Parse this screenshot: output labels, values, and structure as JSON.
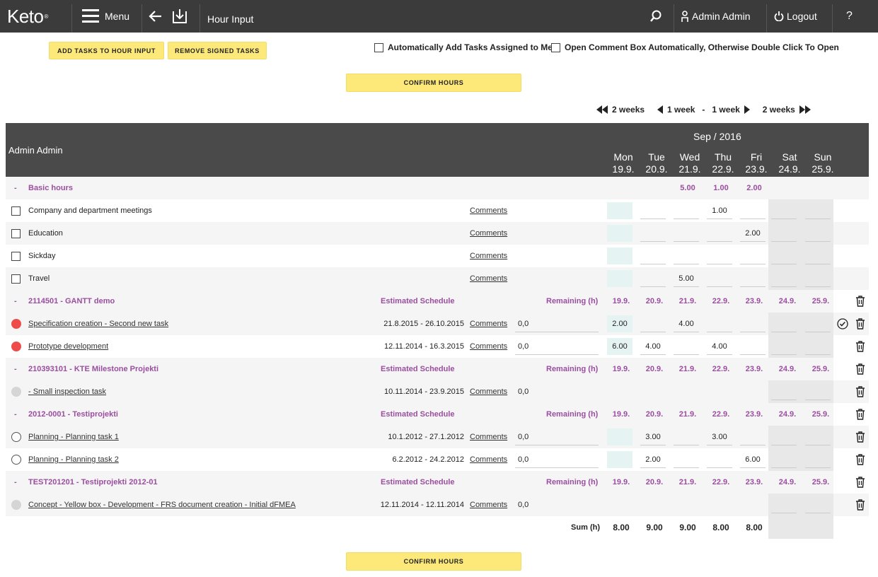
{
  "header": {
    "logo": "Keto",
    "logo_mark": "®",
    "menu_label": "Menu",
    "page_title": "Hour Input",
    "user": "Admin Admin",
    "logout": "Logout",
    "help": "?"
  },
  "toolbar": {
    "add_tasks": "ADD TASKS TO HOUR INPUT",
    "remove_signed": "REMOVE SIGNED TASKS",
    "auto_add_label": "Automatically Add Tasks Assigned to Me",
    "open_comment_label": "Open Comment Box Automatically, Otherwise Double Click To Open",
    "confirm": "CONFIRM HOURS"
  },
  "weeknav": {
    "back2": "2 weeks",
    "back1": "1 week",
    "dash": "-",
    "fwd1": "1 week",
    "fwd2": "2 weeks"
  },
  "table": {
    "user": "Admin Admin",
    "month": "Sep / 2016",
    "days": [
      {
        "name": "Mon",
        "date": "19.9."
      },
      {
        "name": "Tue",
        "date": "20.9."
      },
      {
        "name": "Wed",
        "date": "21.9."
      },
      {
        "name": "Thu",
        "date": "22.9."
      },
      {
        "name": "Fri",
        "date": "23.9."
      },
      {
        "name": "Sat",
        "date": "24.9."
      },
      {
        "name": "Sun",
        "date": "25.9."
      }
    ],
    "basic": {
      "label": "Basic hours",
      "toggle": "-",
      "totals": [
        "",
        "",
        "5.00",
        "1.00",
        "2.00",
        "",
        ""
      ],
      "items": [
        {
          "name": "Company and department meetings",
          "comments": "Comments",
          "hours": [
            "",
            "",
            "",
            "1.00",
            "",
            "",
            ""
          ]
        },
        {
          "name": "Education",
          "comments": "Comments",
          "hours": [
            "",
            "",
            "",
            "",
            "2.00",
            "",
            ""
          ]
        },
        {
          "name": "Sickday",
          "comments": "Comments",
          "hours": [
            "",
            "",
            "",
            "",
            "",
            "",
            ""
          ]
        },
        {
          "name": "Travel",
          "comments": "Comments",
          "hours": [
            "",
            "",
            "5.00",
            "",
            "",
            "",
            ""
          ]
        }
      ]
    },
    "group_labels": {
      "schedule": "Estimated Schedule",
      "remaining": "Remaining (h)"
    },
    "projects": [
      {
        "label": "2114501 - GANTT demo",
        "tasks": [
          {
            "name": "Specification creation - Second new task",
            "dates": "21.8.2015 - 26.10.2015",
            "comments": "Comments",
            "remaining": "0,0",
            "status": "red",
            "hours": [
              "2.00",
              "",
              "4.00",
              "",
              "",
              "",
              ""
            ]
          },
          {
            "name": "Prototype development",
            "dates": "12.11.2014 - 16.3.2015",
            "comments": "Comments",
            "remaining": "0,0",
            "status": "red",
            "hours": [
              "6.00",
              "4.00",
              "",
              "4.00",
              "",
              "",
              ""
            ]
          }
        ]
      },
      {
        "label": "210393101 - KTE Milestone Projekti",
        "tasks": [
          {
            "name": "- Small inspection task",
            "dates": "10.11.2014 - 23.9.2015",
            "comments": "Comments",
            "remaining": "0,0",
            "status": "gray",
            "hours": [
              "",
              "",
              "",
              "",
              "",
              "",
              ""
            ]
          }
        ]
      },
      {
        "label": "2012-0001 - Testiprojekti",
        "tasks": [
          {
            "name": "Planning - Planning task 1",
            "dates": "10.1.2012 - 27.1.2012",
            "comments": "Comments",
            "remaining": "0,0",
            "status": "empty",
            "hours": [
              "",
              "3.00",
              "",
              "3.00",
              "",
              "",
              ""
            ]
          },
          {
            "name": "Planning - Planning task 2",
            "dates": "6.2.2012 - 24.2.2012",
            "comments": "Comments",
            "remaining": "0,0",
            "status": "empty",
            "hours": [
              "",
              "2.00",
              "",
              "",
              "6.00",
              "",
              ""
            ]
          }
        ]
      },
      {
        "label": "TEST201201 - Testiprojekti 2012-01",
        "tasks": [
          {
            "name": "Concept - Yellow box - Development - FRS document creation - Initial dFMEA",
            "dates": "12.11.2014 - 12.11.2014",
            "comments": "Comments",
            "remaining": "0,0",
            "status": "gray",
            "hours": [
              "",
              "",
              "",
              "",
              "",
              "",
              ""
            ]
          }
        ]
      }
    ],
    "sum_label": "Sum (h)",
    "sums": [
      "8.00",
      "9.00",
      "9.00",
      "8.00",
      "8.00",
      "",
      ""
    ]
  }
}
